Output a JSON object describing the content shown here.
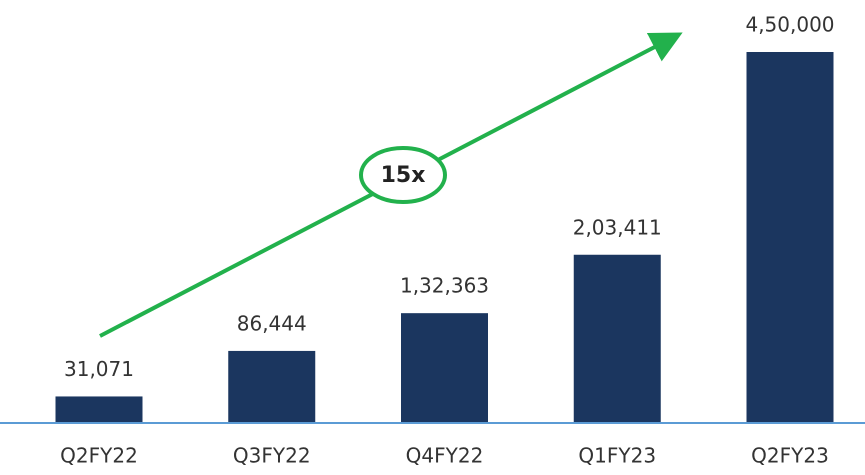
{
  "chart_data": {
    "type": "bar",
    "categories": [
      "Q2FY22",
      "Q3FY22",
      "Q4FY22",
      "Q1FY23",
      "Q2FY23"
    ],
    "values": [
      31071,
      86444,
      132363,
      203411,
      450000
    ],
    "value_labels": [
      "31,071",
      "86,444",
      "1,32,363",
      "2,03,411",
      "4,50,000"
    ],
    "color": "#1b365f",
    "ylim": [
      0,
      450000
    ],
    "annotation": "15x"
  }
}
